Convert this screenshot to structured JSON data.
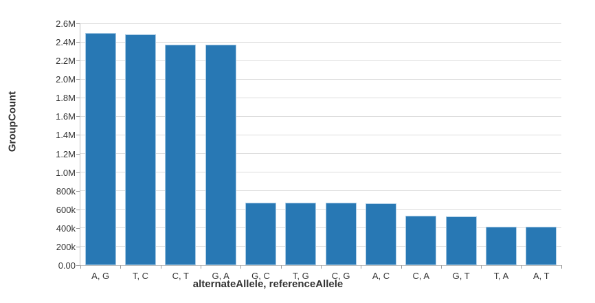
{
  "chart_data": {
    "type": "bar",
    "title": "",
    "xlabel": "alternateAllele, referenceAllele",
    "ylabel": "GroupCount",
    "categories": [
      "A, G",
      "T, C",
      "C, T",
      "G, A",
      "G, C",
      "T, G",
      "C, G",
      "A, C",
      "C, A",
      "G, T",
      "T, A",
      "A, T"
    ],
    "values": [
      2500000,
      2480000,
      2370000,
      2368000,
      672000,
      670000,
      669000,
      663000,
      530000,
      528000,
      414000,
      412000
    ],
    "ylim": [
      0,
      2600000
    ],
    "ytick_interval": 200000,
    "ytick_labels": [
      "0.00",
      "200k",
      "400k",
      "600k",
      "800k",
      "1.0M",
      "1.2M",
      "1.4M",
      "1.6M",
      "1.8M",
      "2.0M",
      "2.2M",
      "2.4M",
      "2.6M"
    ],
    "grid": true,
    "legend": false,
    "colors": {
      "bar_fill": "#2878b4",
      "bar_edge": "#a9cbe5",
      "gridline": "#dcdcdc",
      "axis_line": "#bdbdbd",
      "tick_mark": "#9a9a9a",
      "text": "#333333"
    }
  }
}
